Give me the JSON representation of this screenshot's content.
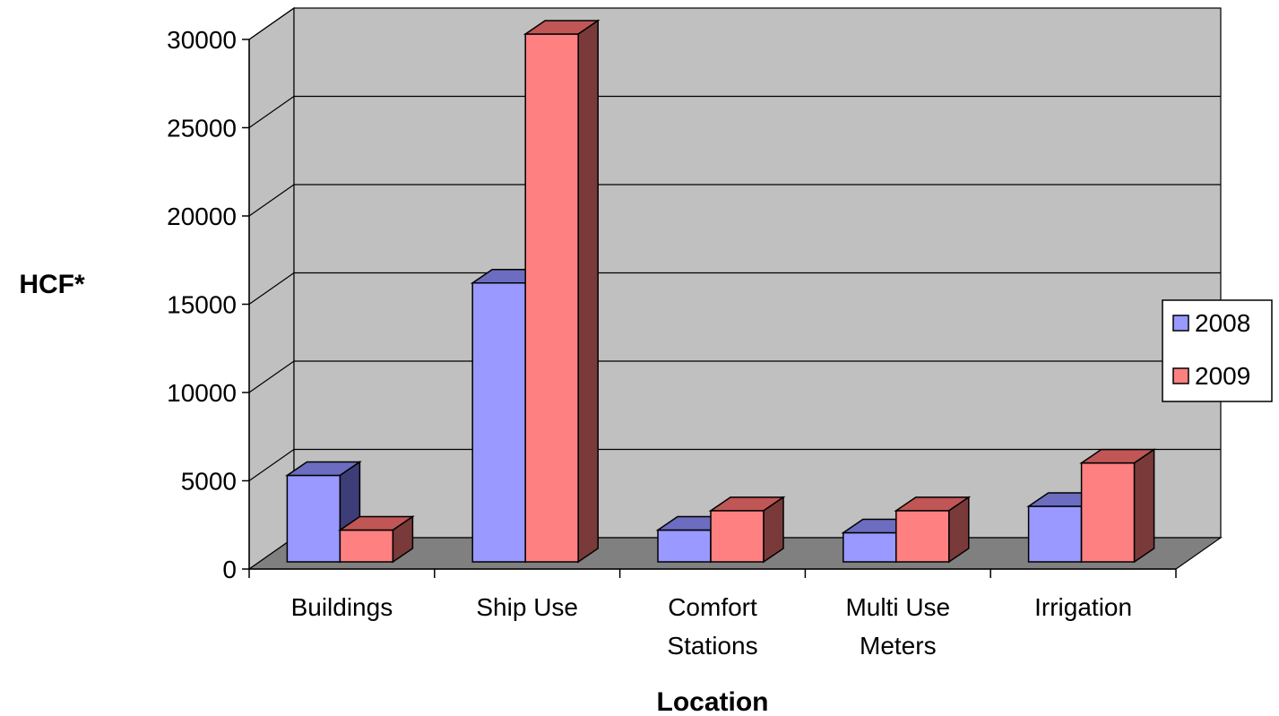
{
  "chart_data": {
    "type": "bar",
    "style": "3d-clustered-column",
    "categories": [
      [
        "Buildings"
      ],
      [
        "Ship Use"
      ],
      [
        "Comfort",
        "Stations"
      ],
      [
        "Multi Use",
        "Meters"
      ],
      [
        "Irrigation"
      ]
    ],
    "series": [
      {
        "name": "2008",
        "values": [
          4900,
          15800,
          1800,
          1650,
          3150
        ],
        "color": "#9999ff",
        "top_color": "#6c6cc0",
        "side_color": "#3d3d78"
      },
      {
        "name": "2009",
        "values": [
          1800,
          29900,
          2900,
          2900,
          5600
        ],
        "color": "#ff8080",
        "top_color": "#c05656",
        "side_color": "#7a3a3a"
      }
    ],
    "xlabel": "Location",
    "ylabel": "HCF*",
    "ylim": [
      0,
      30000
    ],
    "yticks": [
      "0",
      "5000",
      "10000",
      "15000",
      "20000",
      "25000",
      "30000"
    ],
    "grid": true,
    "legend": "right",
    "wall_color": "#c0c0c0",
    "floor_color": "#808080"
  }
}
